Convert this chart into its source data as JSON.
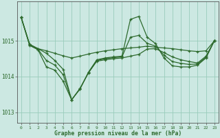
{
  "bg_color": "#cce8e2",
  "grid_color": "#99ccbb",
  "line_color": "#2d6a2d",
  "xlabel": "Graphe pression niveau de la mer (hPa)",
  "ylim": [
    1012.7,
    1016.1
  ],
  "xlim": [
    -0.5,
    23.5
  ],
  "yticks": [
    1013,
    1014,
    1015
  ],
  "xticks": [
    0,
    1,
    2,
    3,
    4,
    5,
    6,
    7,
    8,
    9,
    10,
    11,
    12,
    13,
    14,
    15,
    16,
    17,
    18,
    19,
    20,
    21,
    22,
    23
  ],
  "series": [
    [
      1015.65,
      1014.9,
      1014.78,
      1014.72,
      1014.65,
      1014.58,
      1014.52,
      1014.57,
      1014.63,
      1014.68,
      1014.72,
      1014.75,
      1014.78,
      1014.8,
      1014.82,
      1014.85,
      1014.82,
      1014.8,
      1014.78,
      1014.75,
      1014.72,
      1014.7,
      1014.72,
      1015.0
    ],
    [
      1015.65,
      1014.9,
      1014.78,
      1014.65,
      1014.45,
      1014.2,
      1013.35,
      1013.65,
      1014.12,
      1014.47,
      1014.52,
      1014.55,
      1014.57,
      1015.6,
      1015.68,
      1015.1,
      1014.92,
      1014.52,
      1014.3,
      1014.27,
      1014.27,
      1014.32,
      1014.52,
      1015.0
    ],
    [
      1015.65,
      1014.87,
      1014.75,
      1014.27,
      1014.18,
      1013.87,
      1013.35,
      1013.67,
      1014.1,
      1014.43,
      1014.47,
      1014.5,
      1014.52,
      1014.57,
      1014.62,
      1014.77,
      1014.78,
      1014.67,
      1014.55,
      1014.47,
      1014.42,
      1014.38,
      1014.57,
      1015.0
    ],
    [
      1015.65,
      1014.88,
      1014.76,
      1014.45,
      1014.32,
      1014.05,
      1013.35,
      1013.66,
      1014.11,
      1014.45,
      1014.5,
      1014.53,
      1014.55,
      1015.1,
      1015.15,
      1014.93,
      1014.85,
      1014.6,
      1014.42,
      1014.37,
      1014.34,
      1014.35,
      1014.54,
      1015.0
    ]
  ]
}
